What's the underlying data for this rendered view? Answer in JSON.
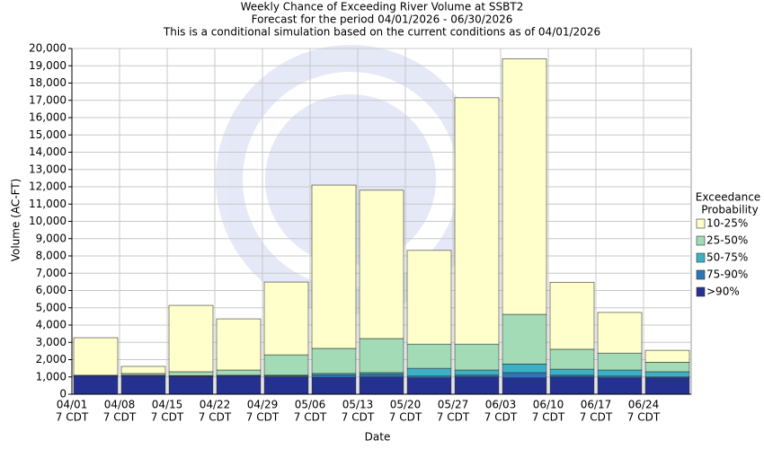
{
  "chart_data": {
    "type": "stacked_bar",
    "title": "Weekly Chance of Exceeding River Volume at SSBT2",
    "subtitle": "Forecast for the period 04/01/2026 - 06/30/2026",
    "subtitle2": "This is a conditional simulation based on the current conditions as of 04/01/2026",
    "x_label": "Date",
    "y_label": "Volume (AC-FT)",
    "categories": [
      "04/01",
      "04/08",
      "04/15",
      "04/22",
      "04/29",
      "05/06",
      "05/13",
      "05/20",
      "05/27",
      "06/03",
      "06/10",
      "06/17",
      "06/24"
    ],
    "x_sublabel": "7 CDT",
    "legend_title": [
      "Exceedance",
      "Probability"
    ],
    "series": [
      {
        "name": ">90%",
        "color": "#243191",
        "values": [
          1050,
          1050,
          1020,
          1050,
          1000,
          970,
          1000,
          950,
          1000,
          950,
          1000,
          950,
          950
        ]
      },
      {
        "name": "75-90%",
        "color": "#2d76b5",
        "values": [
          20,
          30,
          30,
          30,
          60,
          130,
          150,
          100,
          100,
          300,
          100,
          100,
          50
        ]
      },
      {
        "name": "50-75%",
        "color": "#3cb1c6",
        "values": [
          10,
          20,
          30,
          20,
          40,
          100,
          100,
          450,
          300,
          500,
          350,
          350,
          300
        ]
      },
      {
        "name": "25-50%",
        "color": "#a3dbb6",
        "values": [
          20,
          100,
          220,
          300,
          1180,
          1450,
          1970,
          1400,
          1500,
          2870,
          1150,
          980,
          550
        ]
      },
      {
        "name": "10-25%",
        "color": "#ffffcc",
        "values": [
          2170,
          410,
          3840,
          2960,
          4210,
          9450,
          8580,
          5420,
          14250,
          14780,
          3880,
          2350,
          690
        ]
      }
    ],
    "ylim": [
      0,
      20000
    ],
    "yticks": [
      0,
      {
        "value": 1000,
        "label": "1,000"
      },
      {
        "value": 2000,
        "label": "2,000"
      },
      {
        "value": 3000,
        "label": "3,000"
      },
      {
        "value": 4000,
        "label": "4,000"
      },
      {
        "value": 5000,
        "label": "5,000"
      },
      {
        "value": 6000,
        "label": "6,000"
      },
      {
        "value": 7000,
        "label": "7,000"
      },
      {
        "value": 8000,
        "label": "8,000"
      },
      {
        "value": 9000,
        "label": "9,000"
      },
      {
        "value": 10000,
        "label": "10,000"
      },
      {
        "value": 11000,
        "label": "11,000"
      },
      {
        "value": 12000,
        "label": "12,000"
      },
      {
        "value": 13000,
        "label": "13,000"
      },
      {
        "value": 14000,
        "label": "14,000"
      },
      {
        "value": 15000,
        "label": "15,000"
      },
      {
        "value": 16000,
        "label": "16,000"
      },
      {
        "value": 17000,
        "label": "17,000"
      },
      {
        "value": 18000,
        "label": "18,000"
      },
      {
        "value": 19000,
        "label": "19,000"
      },
      {
        "value": 20000,
        "label": "20,000"
      }
    ],
    "grid": true
  }
}
